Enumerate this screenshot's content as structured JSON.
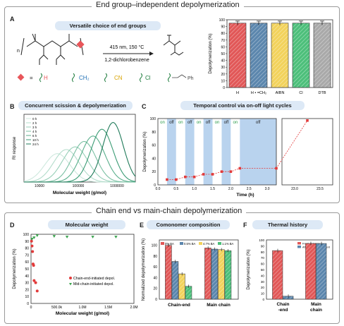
{
  "top_title": "End group–independent depolymerization",
  "bottom_title": "Chain end vs main-chain depolymerization",
  "panel_a": {
    "letter": "A",
    "pill": "Versatile choice of end groups",
    "conditions_1": "415 nm, 150 °C",
    "conditions_2": "1,2-dichlorobenzene",
    "legend_eq": "=",
    "end_groups": [
      "H",
      "CH₂",
      "CN",
      "Cl",
      "Ph"
    ]
  },
  "chart_a": {
    "type": "bar",
    "categories": [
      "H",
      "H • =CH₂",
      "AIBN",
      "Cl",
      "DTB"
    ],
    "values": [
      95,
      95,
      95,
      95,
      95
    ],
    "errors": [
      3,
      3,
      3,
      3,
      3
    ],
    "colors": [
      "#e15757",
      "#5b86ad",
      "#f2d25b",
      "#4cbf7a",
      "#a9a9a9"
    ],
    "ylabel": "Depolymerization (%)",
    "ylim": [
      0,
      100
    ],
    "yticks": [
      "0",
      "10",
      "20",
      "30",
      "40",
      "50",
      "60",
      "70",
      "80",
      "90",
      "100"
    ]
  },
  "panel_b": {
    "letter": "B",
    "pill": "Concurrent scission & depolymerization",
    "ylabel": "RI response",
    "xlabel": "Molecular weight (g/mol)",
    "xticks": [
      "10000",
      "100000",
      "1000000"
    ],
    "legend": [
      "0 h",
      "2 h",
      "3 h",
      "4 h",
      "6 h",
      "10 h",
      "24 h"
    ]
  },
  "panel_c": {
    "letter": "C",
    "pill": "Temporal control via on-off light cycles",
    "ylabel": "Depolymerization (%)",
    "xlabel": "Time (h)",
    "yticks": [
      "0",
      "20",
      "40",
      "60",
      "80",
      "100"
    ],
    "xticks": [
      "0.0",
      "0.5",
      "1.0",
      "1.5",
      "2.0",
      "2.5",
      "3.0",
      "23.0",
      "23.5"
    ],
    "states": [
      "on",
      "off",
      "on",
      "off",
      "on",
      "off",
      "on",
      "off",
      "on",
      "off"
    ],
    "points": [
      [
        0.25,
        8
      ],
      [
        0.5,
        8
      ],
      [
        0.75,
        12
      ],
      [
        1.0,
        12
      ],
      [
        1.25,
        16
      ],
      [
        1.5,
        16
      ],
      [
        1.75,
        20
      ],
      [
        2.0,
        20
      ],
      [
        2.25,
        25
      ],
      [
        3.25,
        25
      ],
      [
        23.25,
        97
      ]
    ]
  },
  "panel_d": {
    "letter": "D",
    "pill": "Molecular weight",
    "ylabel": "Depolymerization (%)",
    "xlabel": "Molecular weight (g/mol)",
    "yticks": [
      "0",
      "10",
      "20",
      "30",
      "40",
      "50",
      "60",
      "70",
      "80",
      "90",
      "100"
    ],
    "xticks": [
      "0",
      "500.0k",
      "1.0M",
      "1.5M",
      "2.0M"
    ],
    "legend_red": "Chain-end-initiated depol.",
    "legend_green": "Mid-chain-initiated depol.",
    "red_points": [
      [
        10000,
        90
      ],
      [
        20000,
        83
      ],
      [
        30000,
        75
      ],
      [
        40000,
        57
      ],
      [
        50000,
        55
      ],
      [
        60000,
        33
      ],
      [
        90000,
        30
      ],
      [
        120000,
        18
      ]
    ],
    "green_points": [
      [
        20000,
        93
      ],
      [
        60000,
        95
      ],
      [
        120000,
        98
      ],
      [
        450000,
        97
      ],
      [
        700000,
        96
      ],
      [
        1200000,
        96
      ],
      [
        1650000,
        96
      ]
    ]
  },
  "panel_e": {
    "letter": "E",
    "pill": "Comonomer composition",
    "ylabel": "Normalized depolymerization (%)",
    "categories": [
      "Chain-end",
      "Main chain"
    ],
    "series": [
      {
        "name": "0% BA",
        "values": [
          100,
          95
        ],
        "color": "#e15757"
      },
      {
        "name": "0.5% BA",
        "values": [
          70,
          93
        ],
        "color": "#5b86ad"
      },
      {
        "name": "4.7% BA",
        "values": [
          47,
          92
        ],
        "color": "#f2d25b"
      },
      {
        "name": "1.1% BA",
        "values": [
          24,
          90
        ],
        "color": "#4cbf7a"
      }
    ],
    "yticks": [
      "0",
      "20",
      "40",
      "60",
      "80",
      "100"
    ]
  },
  "panel_f": {
    "letter": "F",
    "pill": "Thermal history",
    "ylabel": "Depolymerization (%)",
    "categories": [
      "Chain\n-end",
      "Main\nchain"
    ],
    "series": [
      {
        "name": "Fresh polymer",
        "values": [
          82,
          94
        ],
        "color": "#e15757"
      },
      {
        "name": "After thermal treatment",
        "values": [
          5,
          94
        ],
        "color": "#5b86ad"
      }
    ],
    "yticks": [
      "0",
      "10",
      "20",
      "30",
      "40",
      "50",
      "60",
      "70",
      "80",
      "90",
      "100"
    ]
  }
}
